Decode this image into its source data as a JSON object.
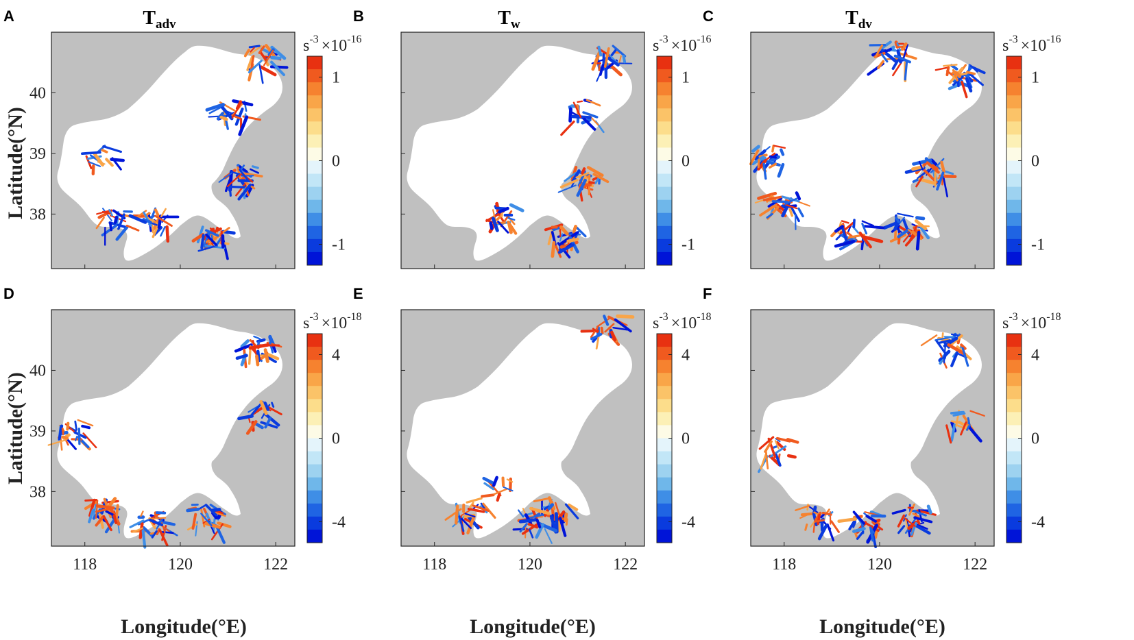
{
  "figure": {
    "y_axis_label": "Latitude(°N)",
    "x_axis_label": "Longitude(°E)"
  },
  "colormap": {
    "positive": [
      "#fdfbe6",
      "#fcf0b6",
      "#fcdd8b",
      "#fbc368",
      "#f9a548",
      "#f6822f",
      "#f05a1f",
      "#e83111"
    ],
    "negative": [
      "#e4f4fb",
      "#c2e6f7",
      "#9dd2f0",
      "#6fb7ea",
      "#3f8ee6",
      "#1f64e3",
      "#0a3bde",
      "#0014d8"
    ],
    "mid": "#ffffff",
    "land": "#c0c0c0"
  },
  "chart_data": [
    {
      "panel": "A",
      "type": "heatmap",
      "title": "T",
      "title_subscript": "adv",
      "xlabel": "",
      "ylabel": "Latitude(°N)",
      "xlim": [
        117.3,
        122.4
      ],
      "ylim": [
        37.1,
        41.0
      ],
      "yticks": [
        "40",
        "39",
        "38"
      ],
      "colorbar": {
        "unit": "s",
        "unit_exp": "-3",
        "multiplier": "×10",
        "multiplier_exp": "-16",
        "ticks": [
          "1",
          "0",
          "-1"
        ],
        "range": [
          -1.25,
          1.25
        ]
      }
    },
    {
      "panel": "B",
      "type": "heatmap",
      "title": "T",
      "title_subscript": "w",
      "xlabel": "",
      "ylabel": "",
      "xlim": [
        117.3,
        122.4
      ],
      "ylim": [
        37.1,
        41.0
      ],
      "colorbar": {
        "unit": "s",
        "unit_exp": "-3",
        "multiplier": "×10",
        "multiplier_exp": "-16",
        "ticks": [
          "1",
          "0",
          "-1"
        ],
        "range": [
          -1.25,
          1.25
        ]
      }
    },
    {
      "panel": "C",
      "type": "heatmap",
      "title": "T",
      "title_subscript": "dv",
      "xlabel": "",
      "ylabel": "",
      "xlim": [
        117.3,
        122.4
      ],
      "ylim": [
        37.1,
        41.0
      ],
      "colorbar": {
        "unit": "s",
        "unit_exp": "-3",
        "multiplier": "×10",
        "multiplier_exp": "-16",
        "ticks": [
          "1",
          "0",
          "-1"
        ],
        "range": [
          -1.25,
          1.25
        ]
      }
    },
    {
      "panel": "D",
      "type": "heatmap",
      "title": "",
      "title_subscript": "",
      "xlabel": "Longitude(°E)",
      "ylabel": "Latitude(°N)",
      "xlim": [
        117.3,
        122.4
      ],
      "ylim": [
        37.1,
        41.0
      ],
      "xticks": [
        "118",
        "120",
        "122"
      ],
      "yticks": [
        "40",
        "39",
        "38"
      ],
      "colorbar": {
        "unit": "s",
        "unit_exp": "-3",
        "multiplier": "×10",
        "multiplier_exp": "-18",
        "ticks": [
          "4",
          "0",
          "-4"
        ],
        "range": [
          -5,
          5
        ]
      }
    },
    {
      "panel": "E",
      "type": "heatmap",
      "title": "",
      "title_subscript": "",
      "xlabel": "Longitude(°E)",
      "ylabel": "",
      "xlim": [
        117.3,
        122.4
      ],
      "ylim": [
        37.1,
        41.0
      ],
      "xticks": [
        "118",
        "120",
        "122"
      ],
      "colorbar": {
        "unit": "s",
        "unit_exp": "-3",
        "multiplier": "×10",
        "multiplier_exp": "-18",
        "ticks": [
          "4",
          "0",
          "-4"
        ],
        "range": [
          -5,
          5
        ]
      }
    },
    {
      "panel": "F",
      "type": "heatmap",
      "title": "",
      "title_subscript": "",
      "xlabel": "Longitude(°E)",
      "ylabel": "",
      "xlim": [
        117.3,
        122.4
      ],
      "ylim": [
        37.1,
        41.0
      ],
      "xticks": [
        "118",
        "120",
        "122"
      ],
      "colorbar": {
        "unit": "s",
        "unit_exp": "-3",
        "multiplier": "×10",
        "multiplier_exp": "-18",
        "ticks": [
          "4",
          "0",
          "-4"
        ],
        "range": [
          -5,
          5
        ]
      }
    }
  ]
}
